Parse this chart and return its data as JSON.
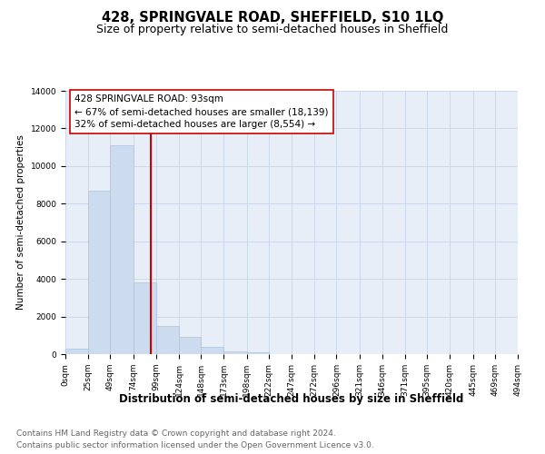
{
  "title": "428, SPRINGVALE ROAD, SHEFFIELD, S10 1LQ",
  "subtitle": "Size of property relative to semi-detached houses in Sheffield",
  "xlabel": "Distribution of semi-detached houses by size in Sheffield",
  "ylabel": "Number of semi-detached properties",
  "footnote1": "Contains HM Land Registry data © Crown copyright and database right 2024.",
  "footnote2": "Contains public sector information licensed under the Open Government Licence v3.0.",
  "property_label": "428 SPRINGVALE ROAD: 93sqm",
  "annotation_line1": "← 67% of semi-detached houses are smaller (18,139)",
  "annotation_line2": "32% of semi-detached houses are larger (8,554) →",
  "property_size": 93,
  "bar_edges": [
    0,
    25,
    49,
    74,
    99,
    124,
    148,
    173,
    198,
    222,
    247,
    272,
    296,
    321,
    346,
    371,
    395,
    420,
    445,
    469,
    494
  ],
  "bar_heights": [
    300,
    8700,
    11100,
    3800,
    1500,
    900,
    400,
    150,
    100,
    0,
    0,
    0,
    0,
    0,
    0,
    0,
    0,
    0,
    0,
    0
  ],
  "bar_color": "#ccdcee",
  "bar_edgecolor": "#aac4de",
  "vline_color": "#cc0000",
  "vline_x": 93,
  "box_facecolor": "#ffffff",
  "box_edgecolor": "#cc0000",
  "ylim": [
    0,
    14000
  ],
  "yticks": [
    0,
    2000,
    4000,
    6000,
    8000,
    10000,
    12000,
    14000
  ],
  "grid_color": "#c8d4e8",
  "bg_color": "#e8eef8",
  "title_fontsize": 10.5,
  "subtitle_fontsize": 9,
  "xlabel_fontsize": 8.5,
  "ylabel_fontsize": 7.5,
  "tick_fontsize": 6.5,
  "annotation_fontsize": 7.5,
  "footnote_fontsize": 6.5
}
